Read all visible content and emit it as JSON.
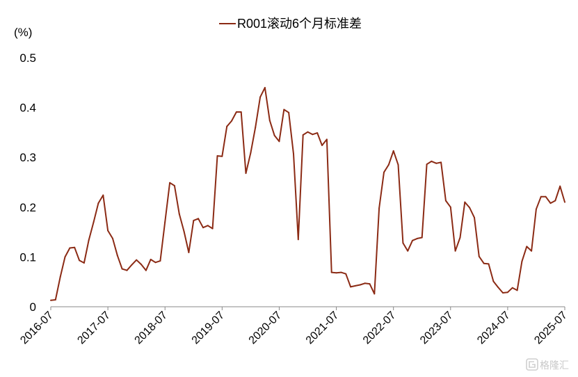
{
  "chart_data": {
    "type": "line",
    "ylabel": "(%)",
    "ylim": [
      0,
      0.5
    ],
    "yticks": [
      "0",
      "0.1",
      "0.2",
      "0.3",
      "0.4",
      "0.5"
    ],
    "xlim": [
      "2016-07",
      "2025-07"
    ],
    "xticks": [
      "2016-07",
      "2017-07",
      "2018-07",
      "2019-07",
      "2020-07",
      "2021-07",
      "2022-07",
      "2023-07",
      "2024-07",
      "2025-07"
    ],
    "grid": false,
    "legend_position": "top-center",
    "series": [
      {
        "name": "R001滚动6个月标准差",
        "color": "#8b2a14",
        "points": [
          [
            "2016-07",
            0.013
          ],
          [
            "2016-08",
            0.014
          ],
          [
            "2016-09",
            0.06
          ],
          [
            "2016-10",
            0.1
          ],
          [
            "2016-11",
            0.118
          ],
          [
            "2016-12",
            0.119
          ],
          [
            "2017-01",
            0.093
          ],
          [
            "2017-02",
            0.088
          ],
          [
            "2017-03",
            0.134
          ],
          [
            "2017-04",
            0.17
          ],
          [
            "2017-05",
            0.208
          ],
          [
            "2017-06",
            0.224
          ],
          [
            "2017-07",
            0.153
          ],
          [
            "2017-08",
            0.137
          ],
          [
            "2017-09",
            0.103
          ],
          [
            "2017-10",
            0.076
          ],
          [
            "2017-11",
            0.073
          ],
          [
            "2017-12",
            0.084
          ],
          [
            "2018-01",
            0.094
          ],
          [
            "2018-02",
            0.085
          ],
          [
            "2018-03",
            0.073
          ],
          [
            "2018-04",
            0.095
          ],
          [
            "2018-05",
            0.089
          ],
          [
            "2018-06",
            0.092
          ],
          [
            "2018-07",
            0.17
          ],
          [
            "2018-08",
            0.249
          ],
          [
            "2018-09",
            0.243
          ],
          [
            "2018-10",
            0.186
          ],
          [
            "2018-11",
            0.151
          ],
          [
            "2018-12",
            0.109
          ],
          [
            "2019-01",
            0.173
          ],
          [
            "2019-02",
            0.177
          ],
          [
            "2019-03",
            0.159
          ],
          [
            "2019-04",
            0.163
          ],
          [
            "2019-05",
            0.157
          ],
          [
            "2019-06",
            0.303
          ],
          [
            "2019-07",
            0.302
          ],
          [
            "2019-08",
            0.362
          ],
          [
            "2019-09",
            0.373
          ],
          [
            "2019-10",
            0.391
          ],
          [
            "2019-11",
            0.391
          ],
          [
            "2019-12",
            0.268
          ],
          [
            "2020-01",
            0.309
          ],
          [
            "2020-02",
            0.36
          ],
          [
            "2020-03",
            0.421
          ],
          [
            "2020-04",
            0.44
          ],
          [
            "2020-05",
            0.374
          ],
          [
            "2020-06",
            0.344
          ],
          [
            "2020-07",
            0.332
          ],
          [
            "2020-08",
            0.396
          ],
          [
            "2020-09",
            0.39
          ],
          [
            "2020-10",
            0.307
          ],
          [
            "2020-11",
            0.135
          ],
          [
            "2020-12",
            0.345
          ],
          [
            "2021-01",
            0.351
          ],
          [
            "2021-02",
            0.346
          ],
          [
            "2021-03",
            0.349
          ],
          [
            "2021-04",
            0.324
          ],
          [
            "2021-05",
            0.336
          ],
          [
            "2021-06",
            0.069
          ],
          [
            "2021-07",
            0.068
          ],
          [
            "2021-08",
            0.069
          ],
          [
            "2021-09",
            0.066
          ],
          [
            "2021-10",
            0.04
          ],
          [
            "2021-11",
            0.042
          ],
          [
            "2021-12",
            0.044
          ],
          [
            "2022-01",
            0.047
          ],
          [
            "2022-02",
            0.046
          ],
          [
            "2022-03",
            0.026
          ],
          [
            "2022-04",
            0.198
          ],
          [
            "2022-05",
            0.27
          ],
          [
            "2022-06",
            0.285
          ],
          [
            "2022-07",
            0.313
          ],
          [
            "2022-08",
            0.285
          ],
          [
            "2022-09",
            0.128
          ],
          [
            "2022-10",
            0.112
          ],
          [
            "2022-11",
            0.133
          ],
          [
            "2022-12",
            0.137
          ],
          [
            "2023-01",
            0.139
          ],
          [
            "2023-02",
            0.286
          ],
          [
            "2023-03",
            0.292
          ],
          [
            "2023-04",
            0.288
          ],
          [
            "2023-05",
            0.29
          ],
          [
            "2023-06",
            0.213
          ],
          [
            "2023-07",
            0.2
          ],
          [
            "2023-08",
            0.112
          ],
          [
            "2023-09",
            0.139
          ],
          [
            "2023-10",
            0.21
          ],
          [
            "2023-11",
            0.199
          ],
          [
            "2023-12",
            0.179
          ],
          [
            "2024-01",
            0.101
          ],
          [
            "2024-02",
            0.087
          ],
          [
            "2024-03",
            0.086
          ],
          [
            "2024-04",
            0.051
          ],
          [
            "2024-05",
            0.039
          ],
          [
            "2024-06",
            0.028
          ],
          [
            "2024-07",
            0.029
          ],
          [
            "2024-08",
            0.038
          ],
          [
            "2024-09",
            0.033
          ],
          [
            "2024-10",
            0.091
          ],
          [
            "2024-11",
            0.121
          ],
          [
            "2024-12",
            0.112
          ],
          [
            "2025-01",
            0.196
          ],
          [
            "2025-02",
            0.221
          ],
          [
            "2025-03",
            0.221
          ],
          [
            "2025-04",
            0.208
          ],
          [
            "2025-05",
            0.213
          ],
          [
            "2025-06",
            0.242
          ],
          [
            "2025-07",
            0.21
          ]
        ]
      }
    ]
  },
  "watermark": {
    "icon": "gelonghui-logo-icon",
    "text": "格隆汇"
  }
}
